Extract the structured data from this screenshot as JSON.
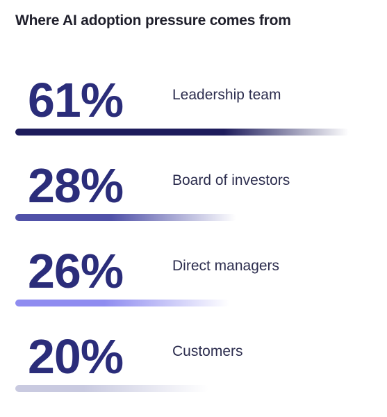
{
  "chart_data": {
    "type": "bar",
    "title": "Where AI adoption pressure comes from",
    "categories": [
      "Leadership team",
      "Board of investors",
      "Direct managers",
      "Customers"
    ],
    "values": [
      61,
      28,
      26,
      20
    ],
    "value_labels": [
      "61%",
      "28%",
      "26%",
      "20%"
    ],
    "unit": "%",
    "colors": [
      "#1e1c5c",
      "#5051a8",
      "#8f8cf0",
      "#c9cae0"
    ]
  }
}
